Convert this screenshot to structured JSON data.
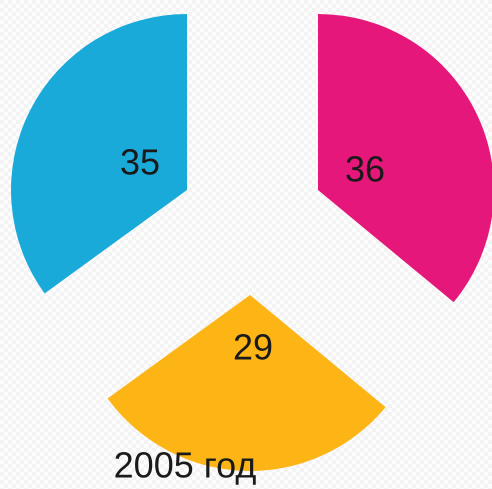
{
  "chart_data": {
    "type": "pie",
    "title": "2005 год",
    "values": [
      36,
      29,
      35
    ],
    "colors": [
      "#e5177b",
      "#fdb515",
      "#1aaad9"
    ],
    "start_angle": 0,
    "direction": "clockwise"
  }
}
